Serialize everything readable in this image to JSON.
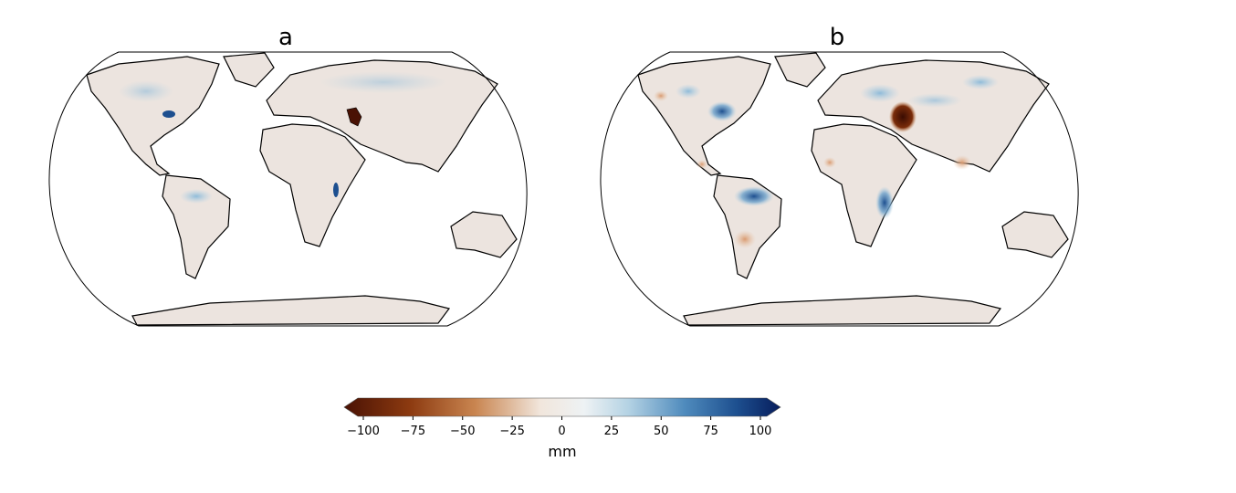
{
  "panels": [
    {
      "title": "a"
    },
    {
      "title": "b"
    }
  ],
  "chart_data": {
    "type": "heatmap",
    "projection": "Robinson",
    "panels": [
      "a",
      "b"
    ],
    "colorbar": {
      "label": "mm",
      "range": [
        -100,
        100
      ],
      "extend": "both",
      "ticks": [
        "−100",
        "−75",
        "−50",
        "−25",
        "0",
        "25",
        "50",
        "75",
        "100"
      ],
      "tick_values": [
        -100,
        -75,
        -50,
        -25,
        0,
        25,
        50,
        75,
        100
      ],
      "colors": [
        "#4a1204",
        "#8c3a10",
        "#c98550",
        "#f1e6dc",
        "#f1f1f1",
        "#b5d3e4",
        "#4f8bbd",
        "#1d4f8f",
        "#071d5c"
      ]
    }
  }
}
